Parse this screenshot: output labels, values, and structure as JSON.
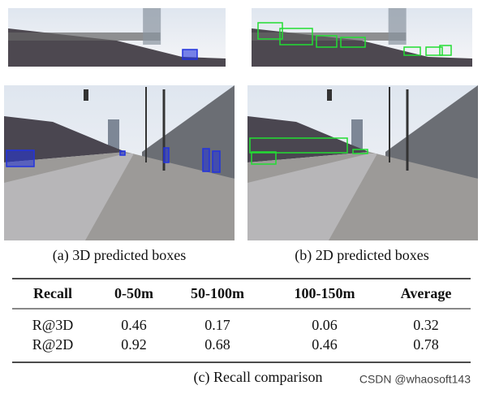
{
  "captions": {
    "a": "(a) 3D predicted boxes",
    "b": "(b) 2D predicted boxes",
    "c": "(c) Recall comparison"
  },
  "table": {
    "header": [
      "Recall",
      "0-50m",
      "50-100m",
      "100-150m",
      "Average"
    ],
    "rows": [
      [
        "R@3D",
        "0.46",
        "0.17",
        "0.06",
        "0.32"
      ],
      [
        "R@2D",
        "0.92",
        "0.68",
        "0.46",
        "0.78"
      ]
    ]
  },
  "watermark": "CSDN @whaosoft143"
}
